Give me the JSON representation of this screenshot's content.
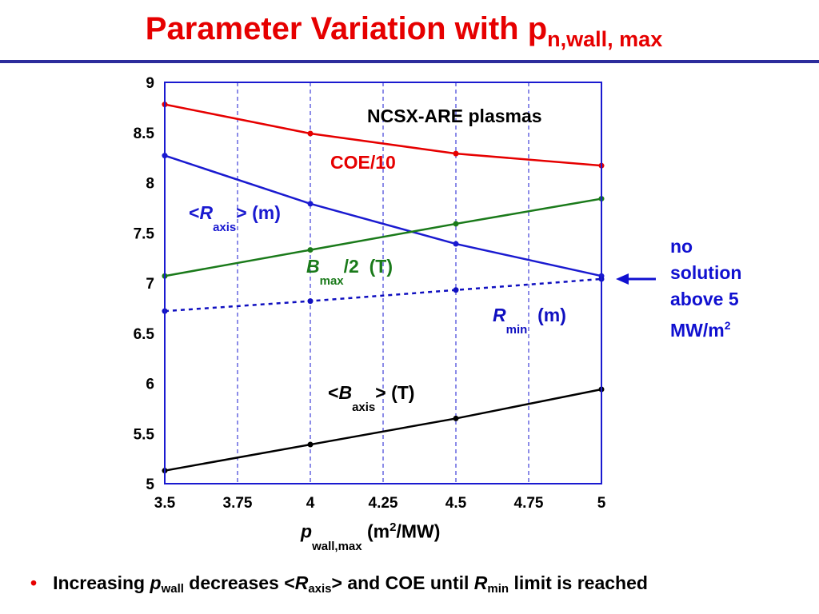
{
  "title": {
    "main": "Parameter Variation with p",
    "sub": "n,wall, max"
  },
  "note": {
    "lines": [
      "no",
      "solution",
      "above 5"
    ],
    "last_base": "MW/m",
    "last_sup": "2"
  },
  "bullet": {
    "marker": "•",
    "t1": "Increasing ",
    "p": "p",
    "p_sub": "wall",
    "t2": " decreases <",
    "r": "R",
    "r_sub": "axis",
    "t3": "> and COE until ",
    "r2": "R",
    "r2_sub": "min",
    "t4": " limit is reached"
  },
  "colors": {
    "title": "#e60000",
    "rule": "#2d2d9c",
    "coe": "#e60000",
    "raxis": "#1a1ad0",
    "bmax": "#1a7a1a",
    "rmin": "#1010c0",
    "baxis": "#000000",
    "frame": "#1a1ad0",
    "note": "#1010d0"
  },
  "chart_data": {
    "type": "line",
    "annotation": "NCSX-ARE plasmas",
    "xlabel": {
      "p": "p",
      "sub": "wall,max",
      "unit_a": "(m",
      "unit_sup": "2",
      "unit_b": "/MW)"
    },
    "xlim": [
      3.5,
      5
    ],
    "ylim": [
      5,
      9
    ],
    "xticks": [
      "3.5",
      "3.75",
      "4",
      "4.25",
      "4.5",
      "4.75",
      "5"
    ],
    "yticks": [
      "5",
      "5.5",
      "6",
      "6.5",
      "7",
      "7.5",
      "8",
      "8.5",
      "9"
    ],
    "grid": true,
    "series": [
      {
        "key": "coe",
        "label": "COE/10",
        "x": [
          3.5,
          4,
          4.5,
          5
        ],
        "y": [
          8.78,
          8.49,
          8.29,
          8.17
        ],
        "dashed": false
      },
      {
        "key": "raxis",
        "label_parts": [
          "<",
          "R",
          "axis",
          "> (m)"
        ],
        "x": [
          3.5,
          4,
          4.5,
          5
        ],
        "y": [
          8.27,
          7.79,
          7.39,
          7.07
        ],
        "dashed": false
      },
      {
        "key": "bmax",
        "label_parts": [
          "B",
          "max",
          "/2",
          "(T)"
        ],
        "x": [
          3.5,
          4,
          4.5,
          5
        ],
        "y": [
          7.07,
          7.33,
          7.59,
          7.84
        ],
        "dashed": false
      },
      {
        "key": "rmin",
        "label_parts": [
          "R",
          "min",
          "(m)"
        ],
        "x": [
          3.5,
          4,
          4.5,
          5
        ],
        "y": [
          6.72,
          6.82,
          6.93,
          7.04
        ],
        "dashed": true
      },
      {
        "key": "baxis",
        "label_parts": [
          "<",
          "B",
          "axis",
          "> (T)"
        ],
        "x": [
          3.5,
          4,
          4.5,
          5
        ],
        "y": [
          5.13,
          5.39,
          5.65,
          5.94
        ],
        "dashed": false
      }
    ]
  }
}
